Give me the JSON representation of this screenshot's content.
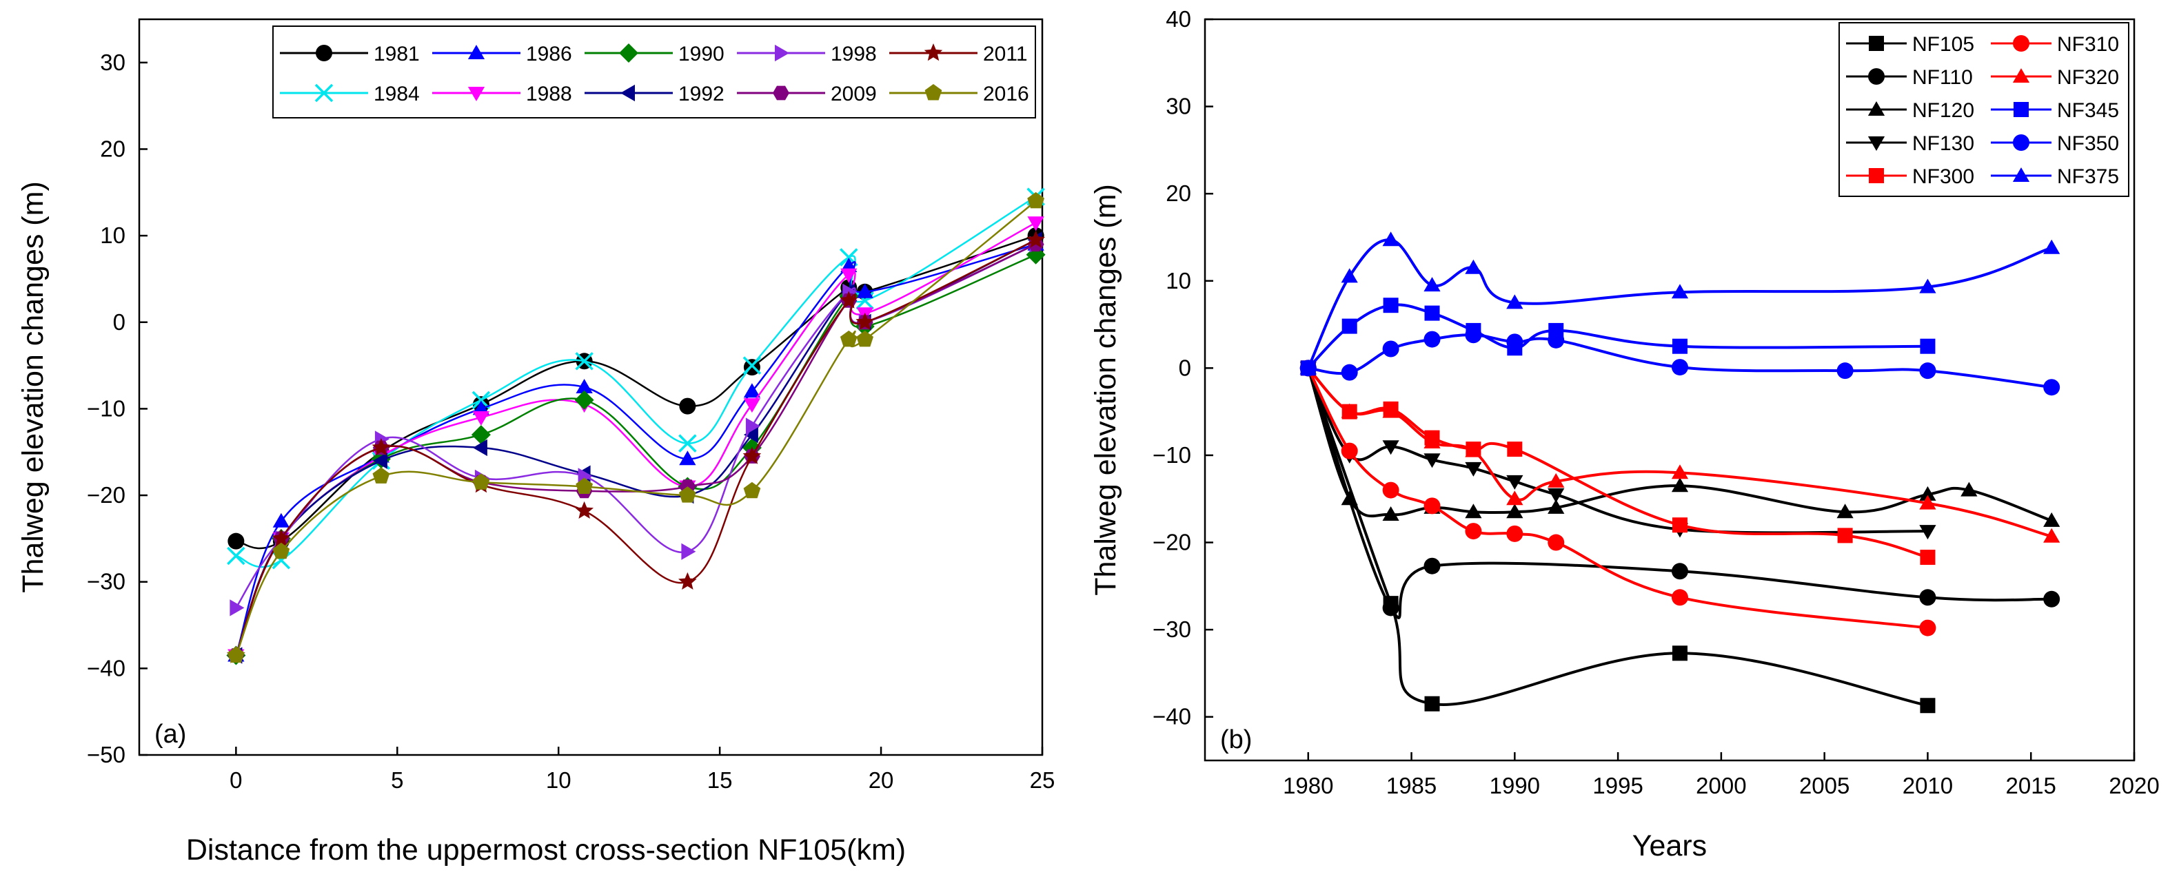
{
  "chart_data": [
    {
      "type": "line",
      "panel_label": "(a)",
      "xlabel": "Distance from the uppermost cross-section NF105(km)",
      "ylabel": "Thalweg elevation changes (m)",
      "xlim": [
        -3,
        25
      ],
      "ylim": [
        -50,
        35
      ],
      "xticks": [
        0,
        5,
        10,
        15,
        20,
        25
      ],
      "xtick_labels": [
        "0",
        "5",
        "10",
        "15",
        "20",
        "25"
      ],
      "yticks": [
        -50,
        -40,
        -30,
        -20,
        -10,
        0,
        10,
        20,
        30
      ],
      "ytick_labels": [
        "−50",
        "−40",
        "−30",
        "−20",
        "−10",
        "0",
        "10",
        "20",
        "30"
      ],
      "legend_location": "top-right",
      "x": [
        0,
        1.4,
        4.5,
        7.6,
        10.8,
        14,
        16,
        19,
        19.5,
        24.8
      ],
      "series": [
        {
          "name": "1981",
          "color": "#000000",
          "marker": "circle",
          "values": [
            -25.3,
            -25.3,
            -15,
            -9.5,
            -4.5,
            -9.7,
            -5.2,
            4,
            3.5,
            10
          ]
        },
        {
          "name": "1984",
          "color": "#00E5EE",
          "marker": "x",
          "values": [
            -27,
            -27.5,
            -16,
            -9,
            -4.5,
            -14,
            -5,
            7.5,
            2.5,
            14.5
          ]
        },
        {
          "name": "1986",
          "color": "#0000FF",
          "marker": "triangle-up",
          "values": [
            -38.5,
            -23,
            -15.5,
            -10,
            -7.5,
            -15.8,
            -8,
            6.5,
            3.5,
            9
          ]
        },
        {
          "name": "1988",
          "color": "#FF00FF",
          "marker": "triangle-down",
          "values": [
            -38.5,
            -25,
            -15.5,
            -11,
            -9.5,
            -19,
            -9.5,
            5.5,
            1,
            11.5
          ]
        },
        {
          "name": "1990",
          "color": "#008000",
          "marker": "diamond",
          "values": [
            -38.5,
            -25,
            -15.8,
            -13,
            -9,
            -19,
            -14.5,
            3,
            -0.5,
            7.8
          ]
        },
        {
          "name": "1992",
          "color": "#00008B",
          "marker": "triangle-left",
          "values": [
            -38.5,
            -25,
            -16,
            -14.5,
            -17.5,
            -20,
            -13,
            3.5,
            0,
            9.5
          ]
        },
        {
          "name": "1998",
          "color": "#8A2BE2",
          "marker": "triangle-right",
          "values": [
            -33,
            -25,
            -13.5,
            -18,
            -17.8,
            -26.5,
            -12,
            3.5,
            0,
            9
          ]
        },
        {
          "name": "2009",
          "color": "#800080",
          "marker": "hexagon",
          "values": [
            -38.5,
            -25,
            -14.5,
            -18.5,
            -19.5,
            -19,
            -15.5,
            2.5,
            0,
            9
          ]
        },
        {
          "name": "2011",
          "color": "#800000",
          "marker": "star",
          "values": [
            -38.5,
            -25,
            -14.5,
            -18.8,
            -21.8,
            -30,
            -15.5,
            2.5,
            0,
            9.5
          ]
        },
        {
          "name": "2016",
          "color": "#808000",
          "marker": "pentagon",
          "values": [
            -38.5,
            -26.5,
            -17.8,
            -18.5,
            -19,
            -20,
            -19.5,
            -2,
            -2,
            14
          ]
        }
      ]
    },
    {
      "type": "line",
      "panel_label": "(b)",
      "xlabel": "Years",
      "ylabel": "Thalweg elevation changes (m)",
      "xlim": [
        1975,
        2020
      ],
      "ylim": [
        -45,
        40
      ],
      "xticks": [
        1980,
        1985,
        1990,
        1995,
        2000,
        2005,
        2010,
        2015,
        2020
      ],
      "xtick_labels": [
        "1980",
        "1985",
        "1990",
        "1995",
        "2000",
        "2005",
        "2010",
        "2015",
        "2020"
      ],
      "yticks": [
        -40,
        -30,
        -20,
        -10,
        0,
        10,
        20,
        30,
        40
      ],
      "ytick_labels": [
        "−40",
        "−30",
        "−20",
        "−10",
        "0",
        "10",
        "20",
        "30",
        "40"
      ],
      "legend_location": "top-right",
      "series": [
        {
          "name": "NF105",
          "color": "#000000",
          "marker": "square",
          "x": [
            1980,
            1984,
            1986,
            1998,
            2010
          ],
          "values": [
            0,
            -27,
            -38.5,
            -32.7,
            -38.7
          ]
        },
        {
          "name": "NF110",
          "color": "#000000",
          "marker": "circle",
          "x": [
            1980,
            1984,
            1986,
            1998,
            2010,
            2016
          ],
          "values": [
            0,
            -27.5,
            -22.7,
            -23.3,
            -26.3,
            -26.5
          ]
        },
        {
          "name": "NF120",
          "color": "#000000",
          "marker": "triangle-up",
          "x": [
            1980,
            1982,
            1984,
            1986,
            1988,
            1990,
            1992,
            1998,
            2006,
            2010,
            2012,
            2016
          ],
          "values": [
            0,
            -15,
            -16.8,
            -16,
            -16.5,
            -16.5,
            -16,
            -13.5,
            -16.5,
            -14.5,
            -14,
            -17.5
          ]
        },
        {
          "name": "NF130",
          "color": "#000000",
          "marker": "triangle-down",
          "x": [
            1980,
            1982,
            1984,
            1986,
            1988,
            1990,
            1992,
            1998,
            2010
          ],
          "values": [
            0,
            -10,
            -9,
            -10.5,
            -11.5,
            -13,
            -14.5,
            -18.5,
            -18.7
          ]
        },
        {
          "name": "NF300",
          "color": "#FF0000",
          "marker": "square",
          "x": [
            1980,
            1982,
            1984,
            1986,
            1988,
            1990,
            1998,
            2006,
            2010
          ],
          "values": [
            0,
            -5,
            -4.7,
            -8,
            -9.3,
            -9.3,
            -18,
            -19.2,
            -21.7
          ]
        },
        {
          "name": "NF310",
          "color": "#FF0000",
          "marker": "circle",
          "x": [
            1980,
            1982,
            1984,
            1986,
            1988,
            1990,
            1992,
            1998,
            2010
          ],
          "values": [
            0,
            -9.5,
            -14,
            -15.8,
            -18.7,
            -19,
            -20,
            -26.3,
            -29.8
          ]
        },
        {
          "name": "NF320",
          "color": "#FF0000",
          "marker": "triangle-up",
          "x": [
            1980,
            1982,
            1984,
            1986,
            1988,
            1990,
            1992,
            1998,
            2010,
            2016
          ],
          "values": [
            0,
            -5,
            -5,
            -8.5,
            -9.5,
            -15,
            -13,
            -12,
            -15.5,
            -19.3
          ]
        },
        {
          "name": "NF345",
          "color": "#0000FF",
          "marker": "square",
          "x": [
            1980,
            1982,
            1984,
            1986,
            1988,
            1990,
            1992,
            1998,
            2010
          ],
          "values": [
            0,
            4.8,
            7.2,
            6.3,
            4.3,
            2.3,
            4.3,
            2.5,
            2.5
          ]
        },
        {
          "name": "NF350",
          "color": "#0000FF",
          "marker": "circle",
          "x": [
            1980,
            1982,
            1984,
            1986,
            1988,
            1990,
            1992,
            1998,
            2006,
            2010,
            2016
          ],
          "values": [
            0,
            -0.5,
            2.2,
            3.3,
            3.8,
            3,
            3.2,
            0.1,
            -0.3,
            -0.3,
            -2.2
          ]
        },
        {
          "name": "NF375",
          "color": "#0000FF",
          "marker": "triangle-up",
          "x": [
            1980,
            1982,
            1984,
            1986,
            1988,
            1990,
            1998,
            2010,
            2016
          ],
          "values": [
            0,
            10.5,
            14.7,
            9.5,
            11.5,
            7.5,
            8.7,
            9.3,
            13.8
          ]
        }
      ]
    }
  ]
}
